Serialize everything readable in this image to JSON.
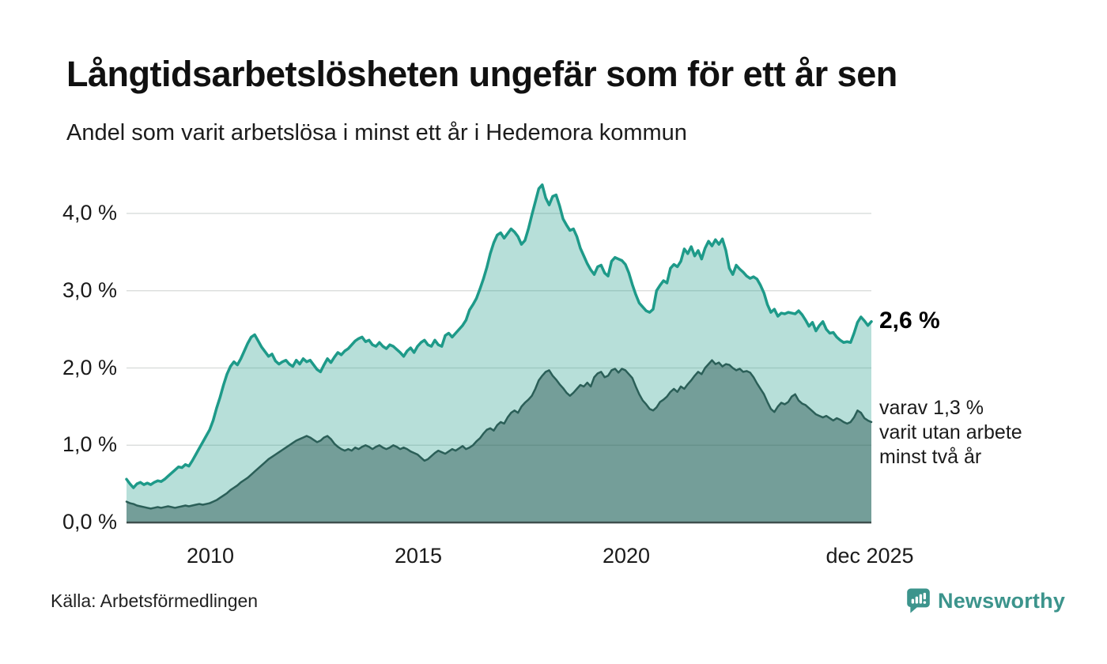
{
  "header": {
    "title": "Långtidsarbetslösheten ungefär som för ett år sen",
    "subtitle": "Andel som varit arbetslösa i minst ett år i Hedemora kommun"
  },
  "chart_data": {
    "type": "area",
    "title": "Långtidsarbetslösheten ungefär som för ett år sen",
    "subtitle": "Andel som varit arbetslösa i minst ett år i Hedemora kommun",
    "unit": "%",
    "x_start_year": 2008,
    "x_end_label": "dec 2025",
    "frequency": "monthly",
    "ylim": [
      0,
      4.47
    ],
    "grid": true,
    "legend_position": "none",
    "y_ticks": [
      {
        "value": 0,
        "label": "0,0 %"
      },
      {
        "value": 1,
        "label": "1,0 %"
      },
      {
        "value": 2,
        "label": "2,0 %"
      },
      {
        "value": 3,
        "label": "3,0 %"
      },
      {
        "value": 4,
        "label": "4,0 %"
      }
    ],
    "x_ticks": [
      {
        "year": 2010,
        "label": "2010"
      },
      {
        "year": 2015,
        "label": "2015"
      },
      {
        "year": 2020,
        "label": "2020"
      },
      {
        "year": 2025.92,
        "label": "dec 2025"
      }
    ],
    "series": [
      {
        "name": "Andel som varit arbetslösa i minst ett år",
        "line_color": "#1e9a89",
        "fill_color": "rgba(30,154,137,0.32)",
        "line_width": 3.5,
        "end_value_label": "2,6 %",
        "values": [
          0.56,
          0.5,
          0.45,
          0.5,
          0.52,
          0.49,
          0.51,
          0.49,
          0.52,
          0.54,
          0.53,
          0.56,
          0.6,
          0.64,
          0.68,
          0.72,
          0.71,
          0.75,
          0.73,
          0.8,
          0.88,
          0.96,
          1.04,
          1.12,
          1.2,
          1.32,
          1.48,
          1.62,
          1.78,
          1.92,
          2.02,
          2.08,
          2.04,
          2.12,
          2.22,
          2.32,
          2.4,
          2.43,
          2.35,
          2.27,
          2.21,
          2.15,
          2.18,
          2.09,
          2.05,
          2.08,
          2.1,
          2.05,
          2.02,
          2.1,
          2.05,
          2.12,
          2.08,
          2.1,
          2.04,
          1.98,
          1.95,
          2.04,
          2.12,
          2.07,
          2.14,
          2.2,
          2.17,
          2.22,
          2.25,
          2.3,
          2.35,
          2.38,
          2.4,
          2.34,
          2.36,
          2.3,
          2.28,
          2.33,
          2.28,
          2.25,
          2.3,
          2.28,
          2.24,
          2.2,
          2.15,
          2.22,
          2.26,
          2.2,
          2.28,
          2.33,
          2.36,
          2.3,
          2.28,
          2.36,
          2.3,
          2.28,
          2.42,
          2.45,
          2.4,
          2.45,
          2.5,
          2.55,
          2.62,
          2.75,
          2.82,
          2.9,
          3.02,
          3.15,
          3.3,
          3.48,
          3.62,
          3.72,
          3.75,
          3.68,
          3.74,
          3.8,
          3.76,
          3.7,
          3.6,
          3.65,
          3.8,
          3.98,
          4.15,
          4.32,
          4.37,
          4.2,
          4.11,
          4.22,
          4.24,
          4.1,
          3.93,
          3.85,
          3.78,
          3.8,
          3.7,
          3.55,
          3.45,
          3.35,
          3.27,
          3.21,
          3.31,
          3.33,
          3.23,
          3.19,
          3.38,
          3.43,
          3.41,
          3.39,
          3.34,
          3.23,
          3.08,
          2.95,
          2.84,
          2.79,
          2.74,
          2.72,
          2.76,
          3.0,
          3.07,
          3.13,
          3.1,
          3.29,
          3.34,
          3.31,
          3.38,
          3.54,
          3.48,
          3.57,
          3.45,
          3.52,
          3.41,
          3.55,
          3.64,
          3.58,
          3.66,
          3.6,
          3.67,
          3.52,
          3.29,
          3.21,
          3.33,
          3.28,
          3.24,
          3.19,
          3.16,
          3.18,
          3.15,
          3.07,
          2.97,
          2.82,
          2.72,
          2.76,
          2.67,
          2.71,
          2.7,
          2.72,
          2.71,
          2.7,
          2.74,
          2.69,
          2.62,
          2.54,
          2.59,
          2.48,
          2.55,
          2.6,
          2.5,
          2.45,
          2.46,
          2.4,
          2.36,
          2.33,
          2.34,
          2.33,
          2.45,
          2.59,
          2.66,
          2.61,
          2.55,
          2.6
        ]
      },
      {
        "name": "varav utan arbete minst två år",
        "line_color": "#2b5f58",
        "fill_color": "rgba(36,80,75,0.45)",
        "line_width": 2.5,
        "end_value_label": "1,3 %",
        "values": [
          0.27,
          0.25,
          0.24,
          0.22,
          0.21,
          0.2,
          0.19,
          0.18,
          0.19,
          0.2,
          0.19,
          0.2,
          0.21,
          0.2,
          0.19,
          0.2,
          0.21,
          0.22,
          0.21,
          0.22,
          0.23,
          0.24,
          0.23,
          0.24,
          0.25,
          0.27,
          0.29,
          0.32,
          0.35,
          0.38,
          0.42,
          0.45,
          0.48,
          0.52,
          0.55,
          0.58,
          0.62,
          0.66,
          0.7,
          0.74,
          0.78,
          0.82,
          0.85,
          0.88,
          0.91,
          0.94,
          0.97,
          1.0,
          1.03,
          1.06,
          1.08,
          1.1,
          1.12,
          1.1,
          1.07,
          1.04,
          1.06,
          1.1,
          1.12,
          1.08,
          1.02,
          0.98,
          0.95,
          0.93,
          0.95,
          0.93,
          0.97,
          0.95,
          0.98,
          1.0,
          0.98,
          0.95,
          0.98,
          1.0,
          0.97,
          0.95,
          0.97,
          1.0,
          0.98,
          0.95,
          0.97,
          0.95,
          0.92,
          0.9,
          0.88,
          0.84,
          0.8,
          0.82,
          0.86,
          0.9,
          0.93,
          0.91,
          0.89,
          0.92,
          0.95,
          0.93,
          0.96,
          0.99,
          0.95,
          0.97,
          1.0,
          1.05,
          1.09,
          1.15,
          1.2,
          1.22,
          1.19,
          1.26,
          1.3,
          1.28,
          1.36,
          1.42,
          1.45,
          1.42,
          1.5,
          1.55,
          1.59,
          1.64,
          1.73,
          1.84,
          1.9,
          1.95,
          1.97,
          1.9,
          1.85,
          1.79,
          1.74,
          1.68,
          1.64,
          1.68,
          1.73,
          1.78,
          1.76,
          1.81,
          1.76,
          1.88,
          1.93,
          1.95,
          1.88,
          1.9,
          1.97,
          1.99,
          1.94,
          1.99,
          1.97,
          1.92,
          1.87,
          1.76,
          1.66,
          1.58,
          1.53,
          1.47,
          1.45,
          1.49,
          1.56,
          1.59,
          1.63,
          1.69,
          1.73,
          1.69,
          1.76,
          1.73,
          1.79,
          1.84,
          1.9,
          1.95,
          1.92,
          2.0,
          2.05,
          2.1,
          2.05,
          2.07,
          2.02,
          2.05,
          2.04,
          2.0,
          1.97,
          1.99,
          1.95,
          1.96,
          1.94,
          1.88,
          1.8,
          1.73,
          1.66,
          1.56,
          1.47,
          1.43,
          1.5,
          1.55,
          1.53,
          1.56,
          1.63,
          1.66,
          1.58,
          1.54,
          1.52,
          1.48,
          1.44,
          1.4,
          1.38,
          1.36,
          1.38,
          1.35,
          1.32,
          1.35,
          1.33,
          1.3,
          1.28,
          1.3,
          1.36,
          1.45,
          1.42,
          1.35,
          1.32,
          1.3
        ]
      }
    ],
    "gridline_color": "#dcdfde",
    "baseline_color": "#3f4f4d"
  },
  "annotations": {
    "end_value": "2,6 %",
    "secondary_lines": [
      "varav 1,3 %",
      "varit utan arbete",
      "minst två år"
    ]
  },
  "footer": {
    "source": "Källa: Arbetsförmedlingen",
    "brand": "Newsworthy",
    "brand_color": "#3c948c"
  }
}
